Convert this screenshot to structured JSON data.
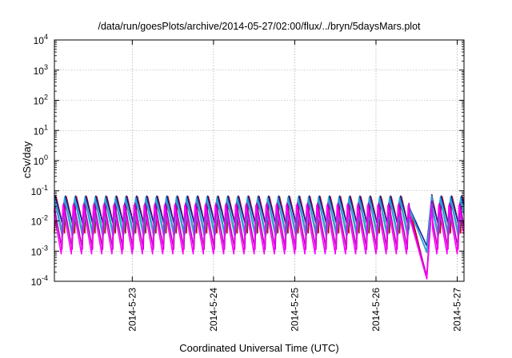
{
  "chart_data": {
    "type": "line",
    "title": "/data/run/goesPlots/archive/2014-05-27/02:00/flux/../bryn/5daysMars.plot",
    "xlabel": "Coordinated Universal Time (UTC)",
    "ylabel": "cSv/day",
    "yscale": "log",
    "ylim": [
      0.0001,
      10000
    ],
    "xlim": [
      "2014-05-22 01:00",
      "2014-05-27 02:00"
    ],
    "grid": true,
    "legend": "none",
    "x_ticks": [
      "2014-5-23",
      "2014-5-24",
      "2014-5-25",
      "2014-5-26",
      "2014-5-27"
    ],
    "y_ticks": [
      {
        "base": "10",
        "exp": "-4"
      },
      {
        "base": "10",
        "exp": "-3"
      },
      {
        "base": "10",
        "exp": "-2"
      },
      {
        "base": "10",
        "exp": "-1"
      },
      {
        "base": "10",
        "exp": "0"
      },
      {
        "base": "10",
        "exp": "1"
      },
      {
        "base": "10",
        "exp": "2"
      },
      {
        "base": "10",
        "exp": "3"
      },
      {
        "base": "10",
        "exp": "4"
      }
    ],
    "pattern": {
      "description_period_hours": 3,
      "anomaly_start": "2014-05-26 10:00",
      "anomaly_min": "2014-05-26 15:00",
      "anomaly_end": "2014-05-26 16:30"
    },
    "series": [
      {
        "color": "#d40000",
        "peak": 0.075,
        "trough": 0.004,
        "anomaly_min": 0.00013
      },
      {
        "color": "#1a1aa0",
        "peak": 0.072,
        "trough": 0.005,
        "anomaly_min": 0.0015
      },
      {
        "color": "#20b0a0",
        "peak": 0.06,
        "trough": 0.003,
        "anomaly_min": 0.001
      },
      {
        "color": "#2fa0e0",
        "peak": 0.068,
        "trough": 0.0025,
        "anomaly_min": 0.0009
      },
      {
        "color": "#b000b0",
        "peak": 0.045,
        "trough": 0.0011,
        "anomaly_min": 0.00015
      },
      {
        "color": "#ff00ff",
        "peak": 0.035,
        "trough": 0.0007,
        "anomaly_min": 0.00012
      }
    ]
  }
}
